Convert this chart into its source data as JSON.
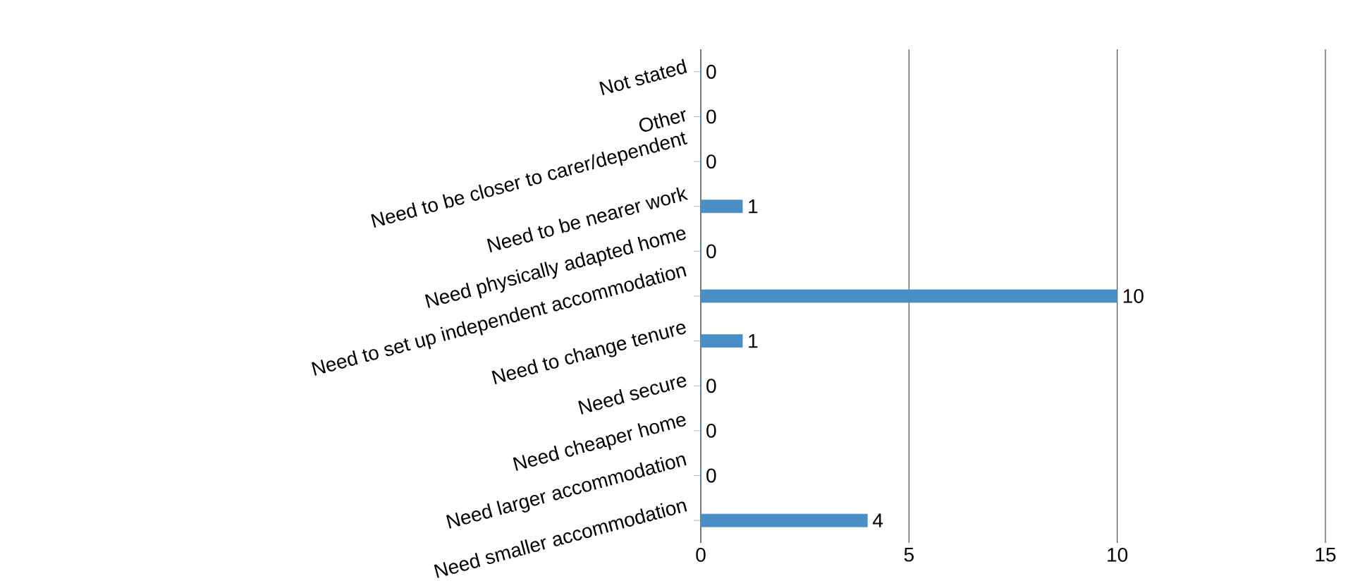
{
  "chart_data": {
    "type": "bar",
    "orientation": "horizontal",
    "categories": [
      "Not stated",
      "Other",
      "Need to be closer to carer/dependent",
      "Need to be nearer work",
      "Need physically adapted home",
      "Need to set up independent accommodation",
      "Need to change tenure",
      "Need secure",
      "Need cheaper home",
      "Need larger accommodation",
      "Need smaller accommodation"
    ],
    "values": [
      0,
      0,
      0,
      1,
      0,
      10,
      1,
      0,
      0,
      0,
      4
    ],
    "color": "#4a8ec6",
    "xlim": [
      0,
      15
    ],
    "xticks": [
      0,
      5,
      10,
      15
    ],
    "grid": "x",
    "data_labels": true
  }
}
